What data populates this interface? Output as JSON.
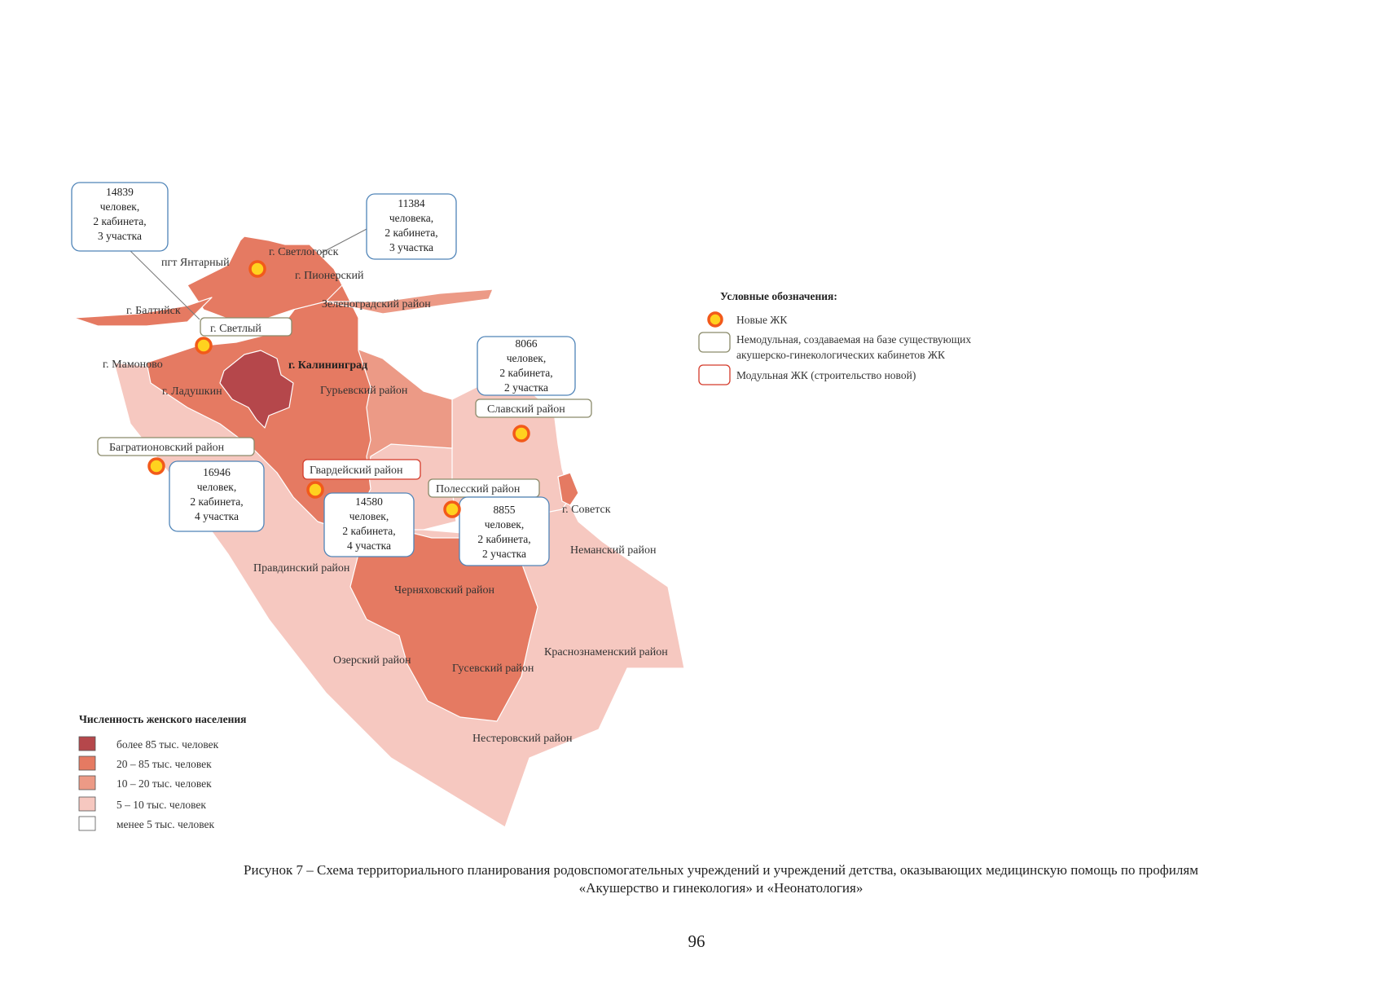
{
  "map": {
    "city_labels": {
      "yantarny": "пгт Янтарный",
      "svetlogorsk": "г. Светлогорск",
      "pionersky": "г. Пионерский",
      "zelenogradsky": "Зеленоградский район",
      "baltiysk": "г. Балтийск",
      "svetly": "г. Светлый",
      "mamonovo": "г. Мамоново",
      "kaliningrad": "г. Калининград",
      "ladushkin": "г. Ладушкин",
      "guryevsky": "Гурьевский район",
      "slavsky": "Славский район",
      "bagrationovsky": "Багратионовский район",
      "gvardeysky": "Гвардейский район",
      "polessky": "Полесский район",
      "sovetsk": "г. Советск",
      "nemansky": "Неманский район",
      "pravdinsky": "Правдинский район",
      "chernyakhovsky": "Черняховский район",
      "krasnoznamensky": "Краснознаменский район",
      "ozersky": "Озерский район",
      "gusevsky": "Гусевский район",
      "nesterovsky": "Нестеровский район"
    },
    "callouts": [
      {
        "count": "14839",
        "l1": "человек,",
        "l2": "2 кабинета,",
        "l3": "3 участка"
      },
      {
        "count": "11384",
        "l1": "человека,",
        "l2": "2 кабинета,",
        "l3": "3 участка"
      },
      {
        "count": "8066",
        "l1": "человек,",
        "l2": "2 кабинета,",
        "l3": "2 участка"
      },
      {
        "count": "16946",
        "l1": "человек,",
        "l2": "2 кабинета,",
        "l3": "4 участка"
      },
      {
        "count": "14580",
        "l1": "человек,",
        "l2": "2 кабинета,",
        "l3": "4 участка"
      },
      {
        "count": "8855",
        "l1": "человек,",
        "l2": "2 кабинета,",
        "l3": "2 участка"
      }
    ],
    "colors": {
      "over_85": "#b5474b",
      "from_20_to_85": "#e57a62",
      "from_10_to_20": "#ec9a86",
      "from_5_to_10": "#f6c8c0",
      "under_5": "#ffffff",
      "marker_fill": "#ffd21f",
      "marker_ring": "#f25a1a"
    }
  },
  "legend_symbols": {
    "title": "Условные обозначения:",
    "new_zk": "Новые ЖК",
    "non_modular_l1": "Немодульная, создаваемая на базе существующих",
    "non_modular_l2": "акушерско-гинекологических кабинетов ЖК",
    "modular": "Модульная ЖК (строительство новой)"
  },
  "legend_population": {
    "title": "Численность женского населения",
    "items": [
      "более 85 тыс. человек",
      "20 – 85 тыс. человек",
      "10 – 20 тыс. человек",
      "5 – 10 тыс. человек",
      "менее 5 тыс. человек"
    ]
  },
  "caption": {
    "line1": "Рисунок 7 – Схема территориального планирования родовспомогательных учреждений и учреждений детства, оказывающих медицинскую помощь по профилям",
    "line2": "«Акушерство и гинекология» и «Неонатология»"
  },
  "page_number": "96"
}
